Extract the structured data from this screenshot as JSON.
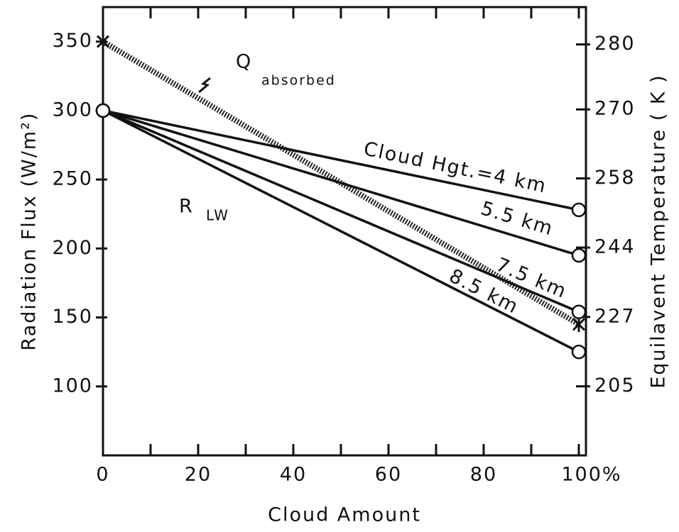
{
  "chart_data": {
    "type": "line",
    "x_label": "Cloud Amount",
    "y_label": "Radiation Flux (W/m²)",
    "y2_label": "Equilavent Temperature ( K )",
    "x": [
      0,
      100
    ],
    "series": [
      {
        "name": "Q",
        "subscript": "absorbed",
        "color": "#222",
        "style": "hatched",
        "marker": "star",
        "values": [
          350,
          145
        ]
      },
      {
        "name": "Cloud Hgt.=4 km",
        "color": "#111",
        "style": "solid",
        "marker": "circle",
        "values": [
          300,
          228
        ]
      },
      {
        "name": "5.5 km",
        "color": "#111",
        "style": "solid",
        "marker": "circle",
        "values": [
          300,
          195
        ]
      },
      {
        "name": "7.5 km",
        "color": "#111",
        "style": "solid",
        "marker": "circle",
        "values": [
          300,
          154
        ]
      },
      {
        "name": "8.5 km",
        "color": "#111",
        "style": "solid",
        "marker": "circle",
        "values": [
          300,
          125
        ]
      }
    ],
    "annotations": [
      {
        "text": "R",
        "subscript": "LW"
      }
    ],
    "xlim": [
      0,
      101.5
    ],
    "xticks": [
      0,
      20,
      40,
      60,
      80,
      {
        "value": 100,
        "label": "100%"
      }
    ],
    "xminor": [
      10,
      30,
      50,
      70,
      90
    ],
    "ylim": [
      50,
      375
    ],
    "yticks": [
      100,
      150,
      200,
      250,
      300,
      350
    ],
    "y2lim": [
      172.3,
      285.3
    ],
    "y2ticks": [
      205,
      227,
      244,
      258,
      270,
      280
    ]
  }
}
